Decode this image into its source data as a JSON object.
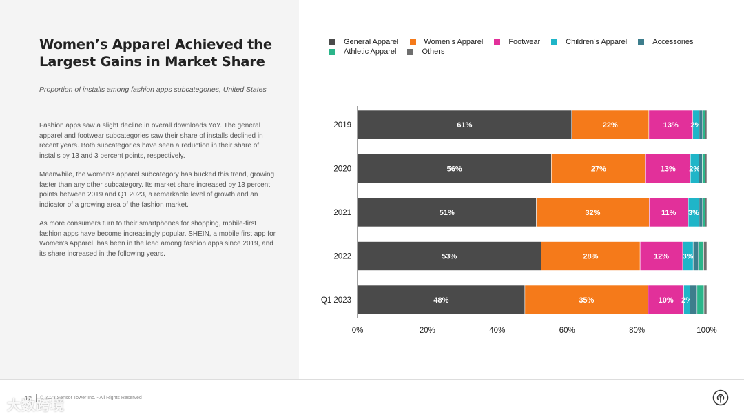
{
  "slide": {
    "title": "Women’s Apparel Achieved the\nLargest Gains in Market Share",
    "subtitle": "Proportion of installs among fashion apps subcategories, United States",
    "paragraphs": [
      "Fashion apps saw a slight decline in overall downloads YoY. The general apparel and footwear subcategories saw their share of installs declined in recent years. Both subcategories have seen a reduction in their share of installs by 13 and 3 percent points, respectively.",
      "Meanwhile, the women’s apparel subcategory has bucked this trend, growing faster than any other subcategory. Its market share increased by 13 percent points between 2019 and Q1 2023, a remarkable level of growth and an indicator of a growing area of the fashion market.",
      "As more consumers turn to their smartphones for shopping, mobile-first fashion apps have become increasingly popular. SHEIN, a mobile first app for Women’s Apparel, has been in the lead among fashion apps since 2019, and its share increased in the following years."
    ]
  },
  "footer": {
    "page_number": "12",
    "copyright": "© 2023 Sensor Tower Inc. - All Rights Reserved",
    "overlay_label": "大数跨境",
    "logo_icon": "sensor-tower-logo-icon"
  },
  "colors": {
    "General Apparel": "#4a4a4a",
    "Women's Apparel": "#f57a1a",
    "Footwear": "#e2309a",
    "Children's Apparel": "#1fb5c8",
    "Accessories": "#3d7d8c",
    "Athletic Apparel": "#2bb58a",
    "Others": "#6e6e6e"
  },
  "chart_data": {
    "type": "bar",
    "orientation": "horizontal",
    "stacked": true,
    "title": "",
    "xlabel": "",
    "ylabel": "",
    "xlim": [
      0,
      100
    ],
    "x_ticks": [
      "0%",
      "20%",
      "40%",
      "60%",
      "80%",
      "100%"
    ],
    "categories": [
      "2019",
      "2020",
      "2021",
      "2022",
      "Q1 2023"
    ],
    "legend_position": "top",
    "series": [
      {
        "name": "General Apparel",
        "values": [
          61.3,
          55.5,
          51.2,
          52.6,
          47.9
        ],
        "labels": [
          "61%",
          "56%",
          "51%",
          "53%",
          "48%"
        ]
      },
      {
        "name": "Women's Apparel",
        "values": [
          22.1,
          27.0,
          32.3,
          28.3,
          35.3
        ],
        "labels": [
          "22%",
          "27%",
          "32%",
          "28%",
          "35%"
        ]
      },
      {
        "name": "Footwear",
        "values": [
          12.6,
          12.8,
          11.2,
          12.2,
          10.2
        ],
        "labels": [
          "13%",
          "13%",
          "11%",
          "12%",
          "10%"
        ]
      },
      {
        "name": "Children's Apparel",
        "values": [
          1.8,
          2.4,
          3.1,
          3.0,
          1.8
        ],
        "labels": [
          "2%",
          "2%",
          "3%",
          "3%",
          "2%"
        ]
      },
      {
        "name": "Accessories",
        "values": [
          1.0,
          1.0,
          1.0,
          1.5,
          2.0
        ],
        "labels": [
          "",
          "",
          "",
          "",
          ""
        ]
      },
      {
        "name": "Athletic Apparel",
        "values": [
          0.7,
          0.8,
          0.7,
          1.5,
          2.0
        ],
        "labels": [
          "",
          "",
          "",
          "",
          ""
        ]
      },
      {
        "name": "Others",
        "values": [
          0.5,
          0.5,
          0.5,
          0.9,
          0.8
        ],
        "labels": [
          "",
          "",
          "",
          "",
          ""
        ]
      }
    ]
  }
}
